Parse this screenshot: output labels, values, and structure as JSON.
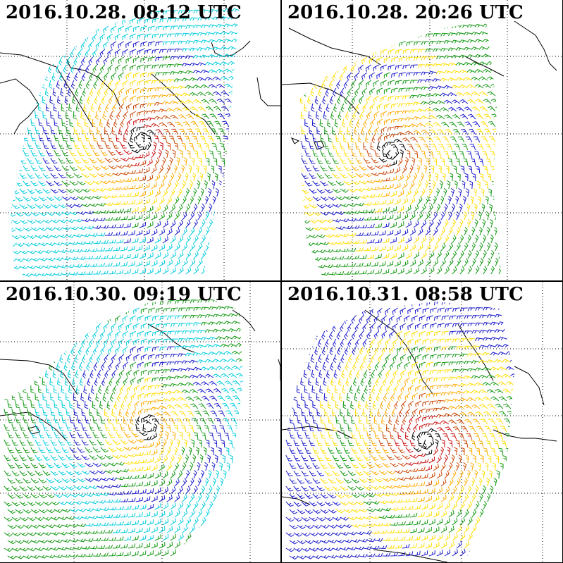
{
  "panels": [
    {
      "timestamp": "2016.10.28. 08:12 UTC"
    },
    {
      "timestamp": "2016.10.28. 20:26 UTC"
    },
    {
      "timestamp": "2016.10.30. 09:19 UTC"
    },
    {
      "timestamp": "2016.10.31. 08:58 UTC"
    }
  ],
  "colors": {
    "calm": "#00ccdd",
    "light": "#1a1acc",
    "moderate": "#119911",
    "fresh": "#ffdd00",
    "strong": "#ffaa00",
    "gale": "#cc4400",
    "storm": "#cc1111",
    "violent": "#aa11cc",
    "center": "#000000",
    "coastline": "#000000",
    "gridline": "#000000"
  },
  "map": {
    "coastline": "black",
    "graticule": "dotted"
  },
  "icons": {
    "wind_barb": "wind-barb-icon"
  }
}
